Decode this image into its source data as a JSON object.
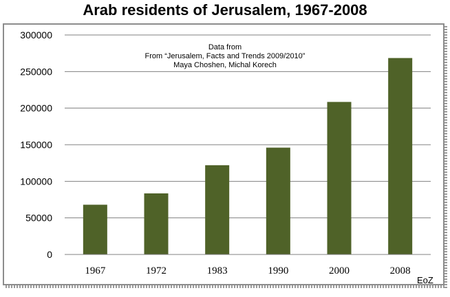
{
  "chart_data": {
    "type": "bar",
    "title": "Arab residents of Jerusalem, 1967-2008",
    "categories": [
      "1967",
      "1972",
      "1983",
      "1990",
      "2000",
      "2008"
    ],
    "values": [
      68000,
      83500,
      122000,
      146000,
      208500,
      268500
    ],
    "ylim": [
      0,
      300000
    ],
    "yticks": [
      "0",
      "50000",
      "100000",
      "150000",
      "200000",
      "250000",
      "300000"
    ],
    "grid": true,
    "bar_color": "#4f6228",
    "annotation": [
      "Data from",
      "From “Jerusalem, Facts and Trends 2009/2010”",
      "Maya Choshen, Michal Korech"
    ],
    "credit": "EoZ"
  }
}
